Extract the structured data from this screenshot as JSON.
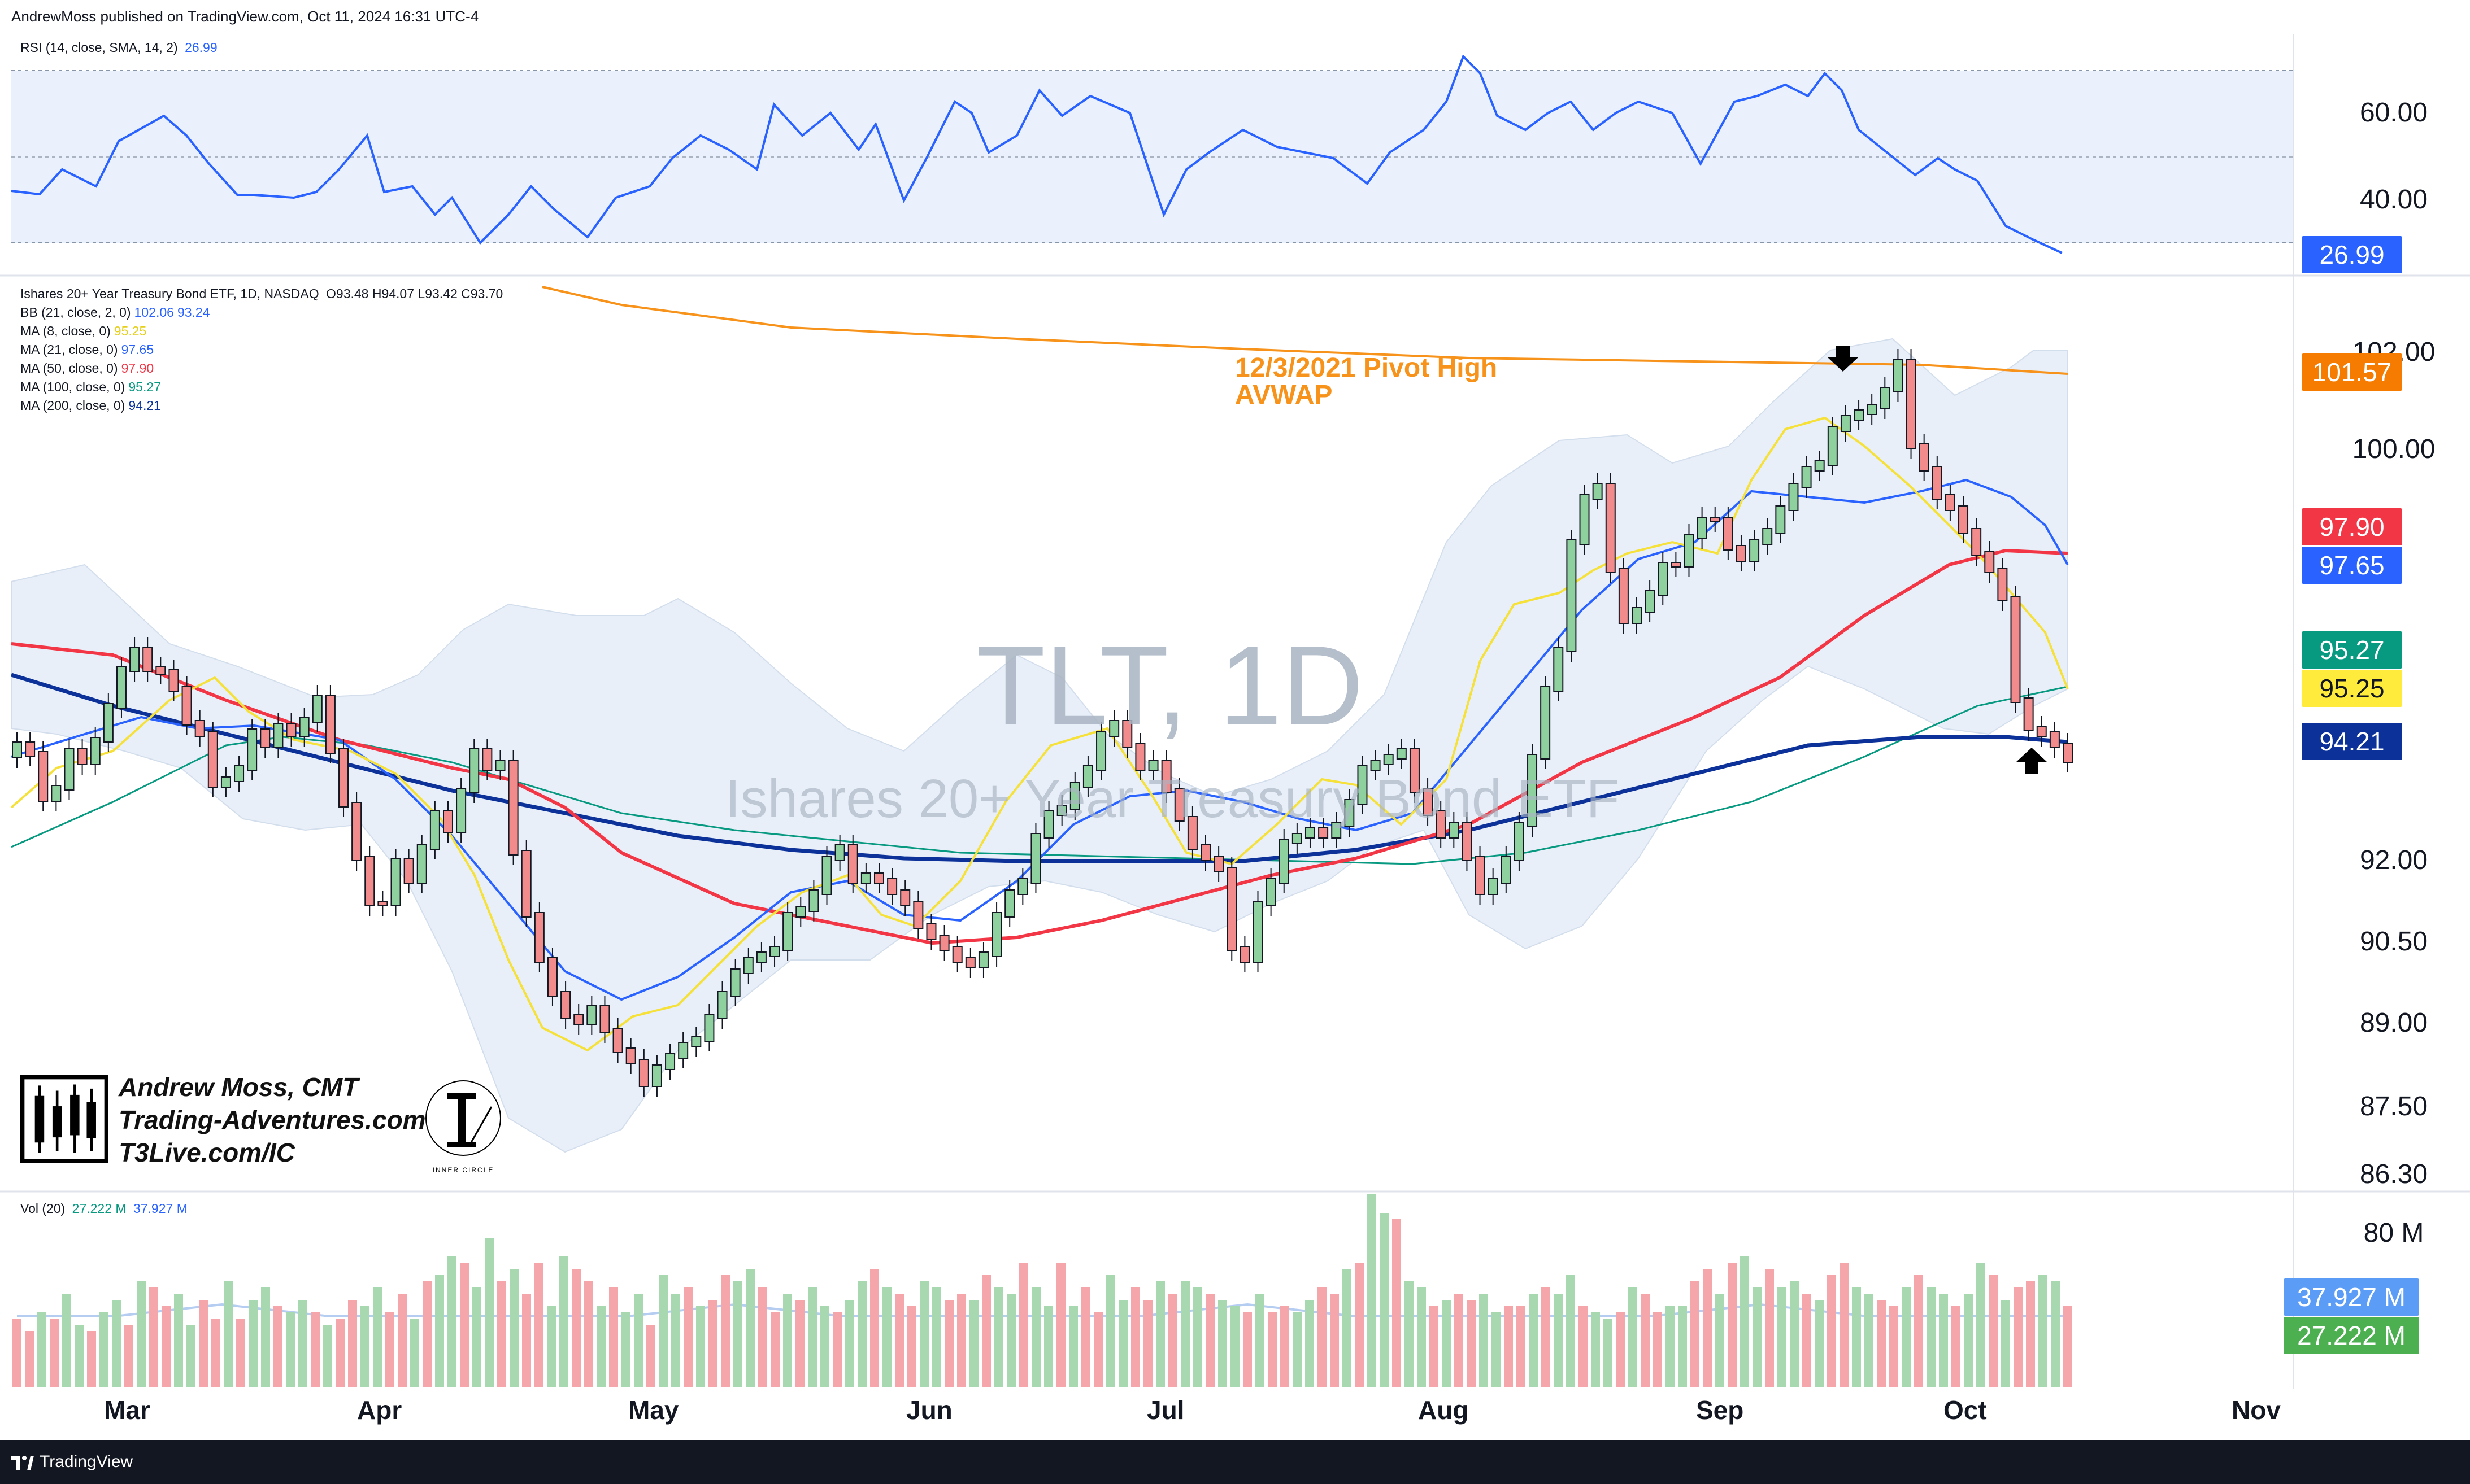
{
  "header": {
    "published": "AndrewMoss published on TradingView.com, Oct 11, 2024 16:31 UTC-4"
  },
  "rsi": {
    "legend_label": "RSI (14, close, SMA, 14, 2)",
    "legend_value": "26.99",
    "axis_ticks": [
      "60.00",
      "40.00"
    ],
    "current_tag": "26.99",
    "line_color": "#2962ff"
  },
  "price": {
    "title_line": "Ishares 20+ Year Treasury Bond ETF, 1D, NASDAQ",
    "ohlc": "O93.48  H94.07  L93.42  C93.70",
    "indicators": [
      {
        "label": "BB (21, close, 2, 0)",
        "values": [
          "102.06",
          "93.24"
        ],
        "colors": [
          "#2962ff",
          "#2962ff"
        ]
      },
      {
        "label": "MA (8, close, 0)",
        "values": [
          "95.25"
        ],
        "colors": [
          "#f5e13a"
        ]
      },
      {
        "label": "MA (21, close, 0)",
        "values": [
          "97.65"
        ],
        "colors": [
          "#2962ff"
        ]
      },
      {
        "label": "MA (50, close, 0)",
        "values": [
          "97.90"
        ],
        "colors": [
          "#f23645"
        ]
      },
      {
        "label": "MA (100, close, 0)",
        "values": [
          "95.27"
        ],
        "colors": [
          "#089981"
        ]
      },
      {
        "label": "MA (200, close, 0)",
        "values": [
          "94.21"
        ],
        "colors": [
          "#0c3299"
        ]
      }
    ],
    "axis_ticks": [
      "102.00",
      "100.00",
      "92.00",
      "90.50",
      "89.00",
      "87.50",
      "86.30"
    ],
    "tags": [
      {
        "value": "101.57",
        "color": "#f57c00",
        "text_color": "#ffffff"
      },
      {
        "value": "97.90",
        "color": "#f23645",
        "text_color": "#ffffff"
      },
      {
        "value": "97.65",
        "color": "#2962ff",
        "text_color": "#ffffff"
      },
      {
        "value": "95.27",
        "color": "#089981",
        "text_color": "#ffffff"
      },
      {
        "value": "95.25",
        "color": "#ffeb3b",
        "text_color": "#131722"
      },
      {
        "value": "94.21",
        "color": "#0c3299",
        "text_color": "#ffffff"
      }
    ],
    "annotation": [
      "12/3/2021 Pivot High",
      "AVWAP"
    ],
    "watermark_ticker": "TLT, 1D",
    "watermark_name": "Ishares 20+ Year Treasury Bond ETF"
  },
  "branding": {
    "lines": [
      "Andrew Moss, CMT",
      "Trading-Adventures.com",
      "T3Live.com/IC"
    ],
    "inner_circle": "INNER CIRCLE"
  },
  "volume": {
    "legend_label": "Vol (20)",
    "values": [
      "27.222 M",
      "37.927 M"
    ],
    "axis_tick": "80 M",
    "tag_ma": "37.927 M",
    "tag_vol": "27.222 M"
  },
  "time_axis": [
    "Mar",
    "Apr",
    "May",
    "Jun",
    "Jul",
    "Aug",
    "Sep",
    "Oct",
    "Nov"
  ],
  "footer": {
    "brand": "TradingView"
  }
}
